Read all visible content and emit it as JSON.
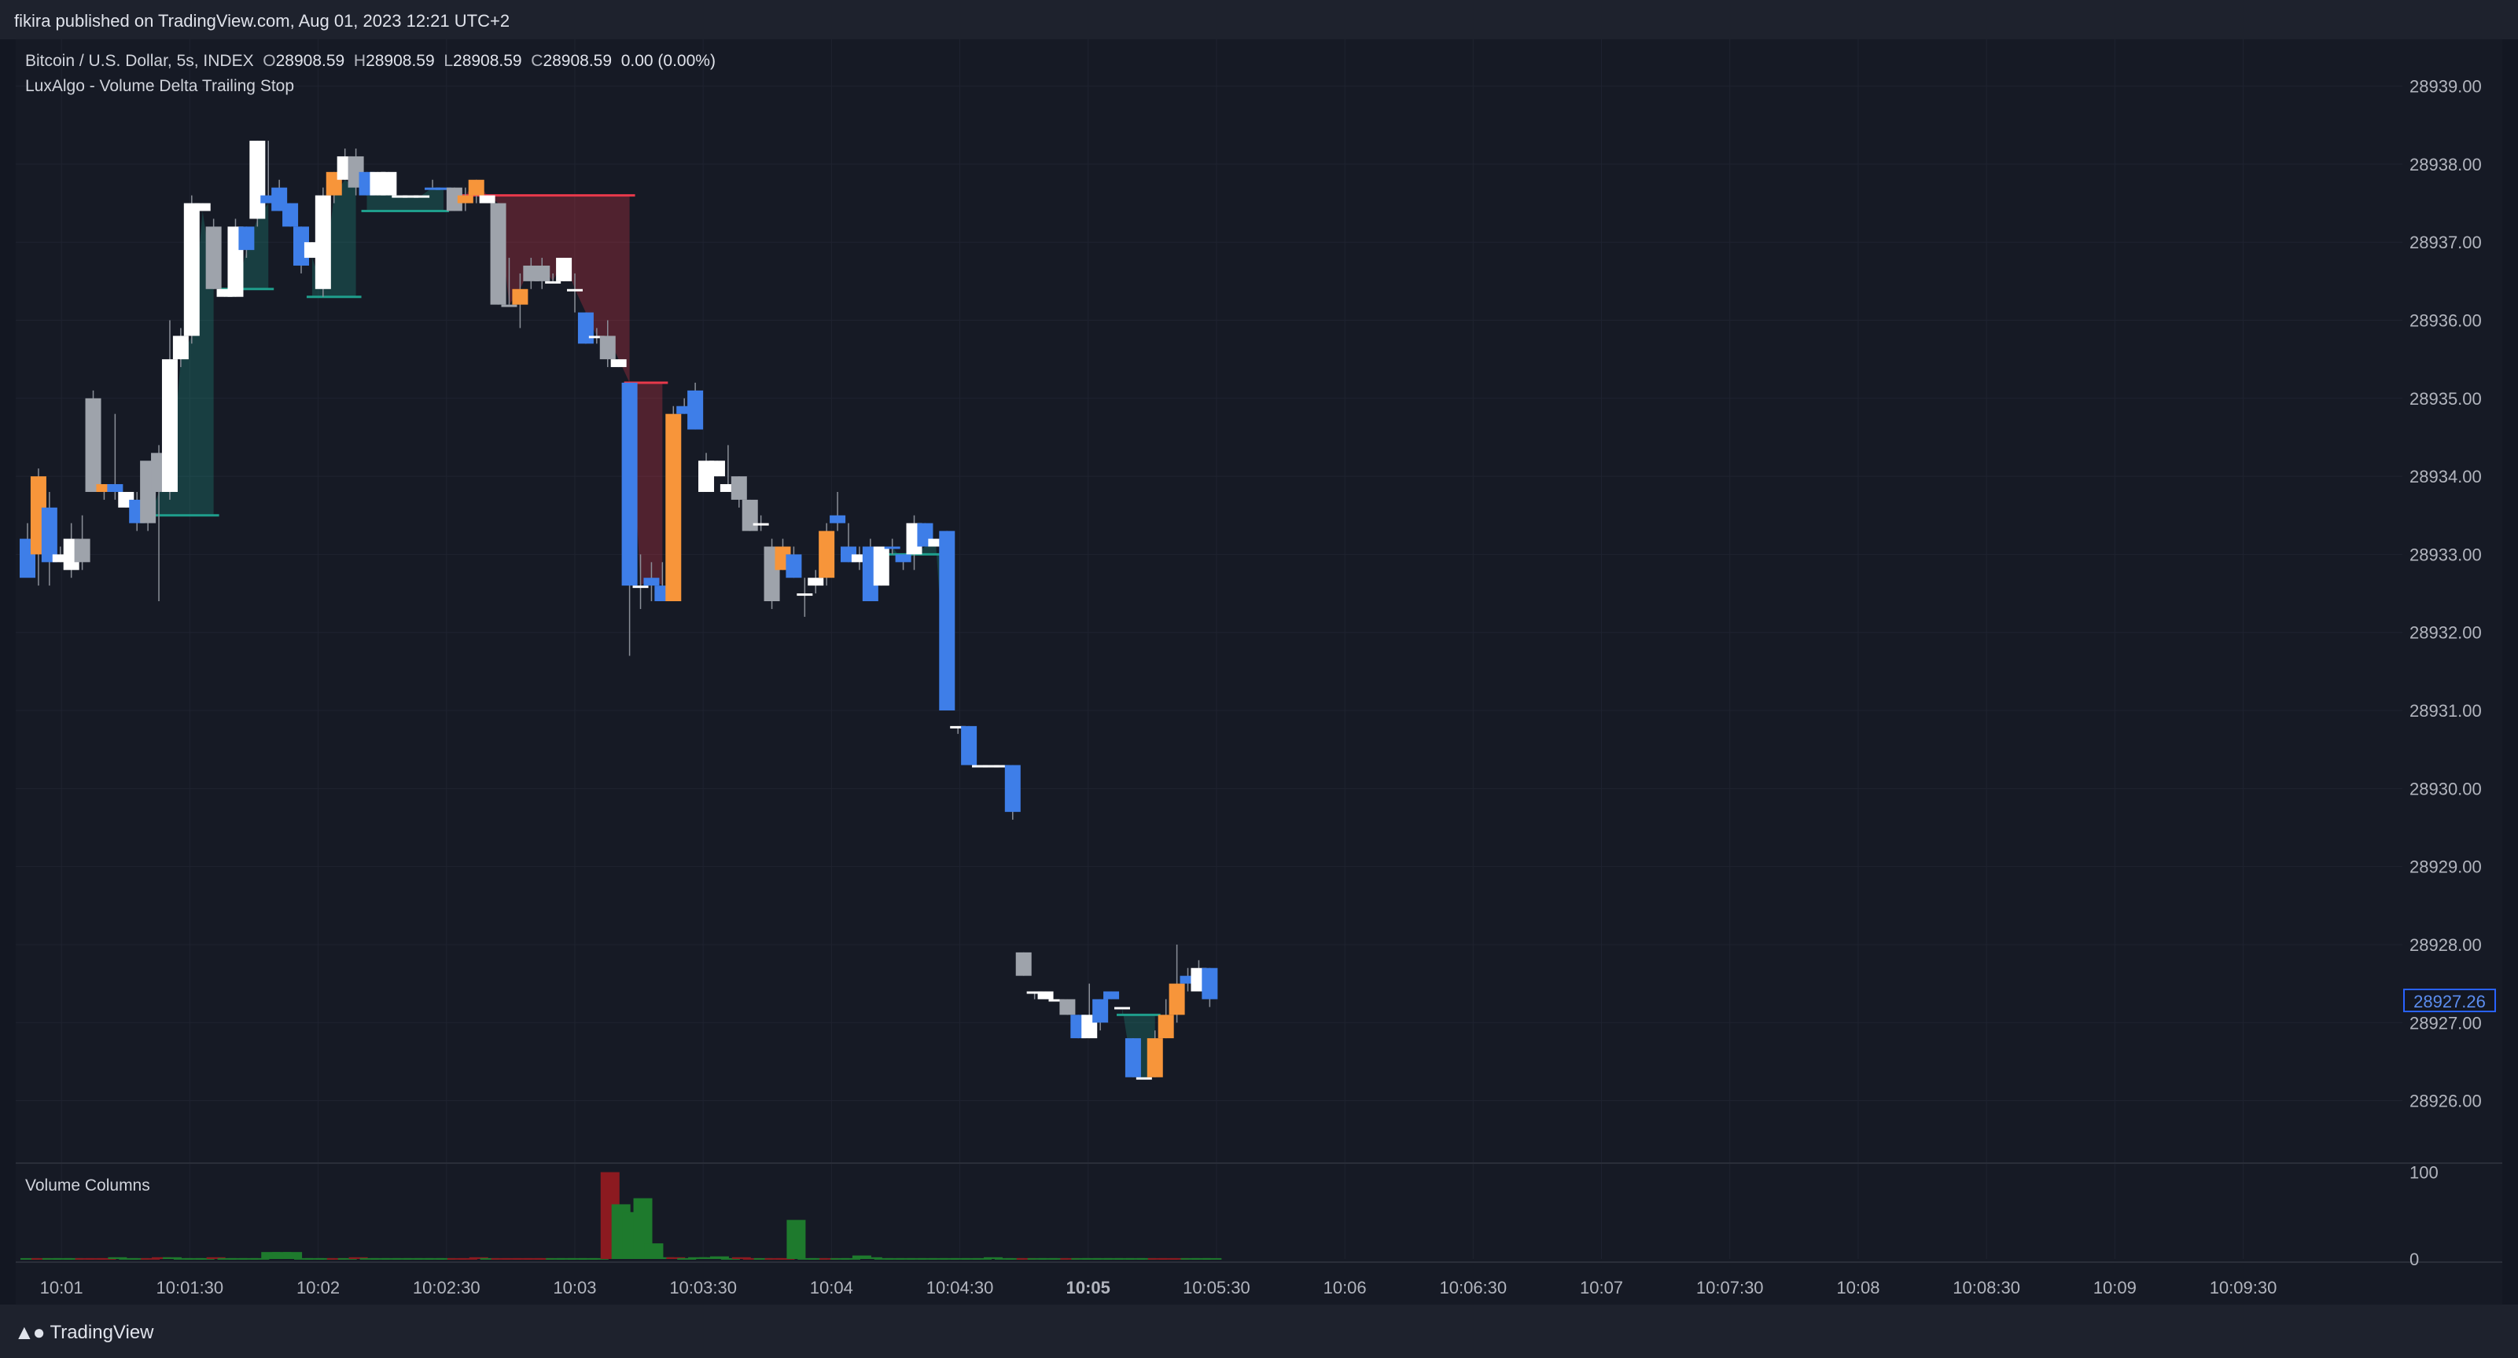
{
  "header": {
    "published": "fikira published on TradingView.com, Aug 01, 2023 12:21 UTC+2"
  },
  "legend": {
    "symbol": "Bitcoin / U.S. Dollar, 5s, INDEX",
    "o_label": "O",
    "o": "28908.59",
    "h_label": "H",
    "h": "28908.59",
    "l_label": "L",
    "l": "28908.59",
    "c_label": "C",
    "c": "28908.59",
    "change": "0.00 (0.00%)",
    "indicator": "LuxAlgo - Volume Delta Trailing Stop"
  },
  "volume_pane": {
    "title": "Volume Columns"
  },
  "last_price_badge": "28927.26",
  "footer": {
    "brand": "TradingView"
  },
  "colors": {
    "background": "#131722",
    "up_blue": "#3e7ee8",
    "down_orange": "#f7953a",
    "white": "#ffffff",
    "gray": "#9ea3ab",
    "stop_bull": "#1f9e8c",
    "stop_bear": "#e8394b",
    "vol_green": "#1e7a2d",
    "vol_red": "#8c1a20"
  },
  "chart_data": [
    {
      "type": "candlestick",
      "y_ticks": [
        "28939.00",
        "28938.00",
        "28937.00",
        "28936.00",
        "28935.00",
        "28934.00",
        "28933.00",
        "28932.00",
        "28931.00",
        "28930.00",
        "28929.00",
        "28928.00",
        "28927.00",
        "28926.00"
      ],
      "x_ticks": [
        "10:01",
        "10:01:30",
        "10:02",
        "10:02:30",
        "10:03",
        "10:03:30",
        "10:04",
        "10:04:30",
        "10:05",
        "10:05:30",
        "10:06",
        "10:06:30",
        "10:07",
        "10:07:30",
        "10:08",
        "10:08:30",
        "10:09",
        "10:09:30"
      ],
      "ylim": [
        28925.2,
        28939.6
      ],
      "candles": [
        {
          "o": 28933.2,
          "h": 28933.4,
          "l": 28932.8,
          "c": 28932.7,
          "k": "b"
        },
        {
          "o": 28933.0,
          "h": 28934.1,
          "l": 28932.6,
          "c": 28934.0,
          "k": "o"
        },
        {
          "o": 28933.6,
          "h": 28933.8,
          "l": 28932.6,
          "c": 28932.9,
          "k": "b"
        },
        {
          "o": 28933.0,
          "h": 28933.1,
          "l": 28932.9,
          "c": 28932.9,
          "k": "w"
        },
        {
          "o": 28933.2,
          "h": 28933.4,
          "l": 28932.7,
          "c": 28932.8,
          "k": "w"
        },
        {
          "o": 28933.2,
          "h": 28933.5,
          "l": 28932.8,
          "c": 28932.9,
          "k": "g"
        },
        {
          "o": 28935.0,
          "h": 28935.1,
          "l": 28933.9,
          "c": 28933.8,
          "k": "g"
        },
        {
          "o": 28933.8,
          "h": 28933.9,
          "l": 28933.7,
          "c": 28933.9,
          "k": "o"
        },
        {
          "o": 28933.9,
          "h": 28934.8,
          "l": 28933.7,
          "c": 28933.8,
          "k": "b"
        },
        {
          "o": 28933.8,
          "h": 28933.8,
          "l": 28933.6,
          "c": 28933.6,
          "k": "w"
        },
        {
          "o": 28933.7,
          "h": 28933.8,
          "l": 28933.3,
          "c": 28933.4,
          "k": "b"
        },
        {
          "o": 28933.4,
          "h": 28934.1,
          "l": 28933.3,
          "c": 28934.2,
          "k": "g"
        },
        {
          "o": 28933.8,
          "h": 28934.4,
          "l": 28932.4,
          "c": 28934.3,
          "k": "g"
        },
        {
          "o": 28933.8,
          "h": 28936.0,
          "l": 28933.7,
          "c": 28935.5,
          "k": "w"
        },
        {
          "o": 28935.5,
          "h": 28935.9,
          "l": 28935.4,
          "c": 28935.8,
          "k": "w"
        },
        {
          "o": 28935.8,
          "h": 28937.6,
          "l": 28935.7,
          "c": 28937.5,
          "k": "w"
        },
        {
          "o": 28937.5,
          "h": 28937.5,
          "l": 28937.4,
          "c": 28937.4,
          "k": "w"
        },
        {
          "o": 28937.2,
          "h": 28937.3,
          "l": 28936.4,
          "c": 28936.4,
          "k": "g"
        },
        {
          "o": 28936.4,
          "h": 28936.4,
          "l": 28936.3,
          "c": 28936.3,
          "k": "w"
        },
        {
          "o": 28936.3,
          "h": 28937.3,
          "l": 28936.3,
          "c": 28937.2,
          "k": "w"
        },
        {
          "o": 28936.9,
          "h": 28937.2,
          "l": 28936.8,
          "c": 28937.2,
          "k": "b"
        },
        {
          "o": 28937.3,
          "h": 28938.3,
          "l": 28937.2,
          "c": 28938.3,
          "k": "w"
        },
        {
          "o": 28937.6,
          "h": 28938.3,
          "l": 28937.5,
          "c": 28937.5,
          "k": "b"
        },
        {
          "o": 28937.4,
          "h": 28937.8,
          "l": 28937.4,
          "c": 28937.7,
          "k": "b"
        },
        {
          "o": 28937.5,
          "h": 28937.5,
          "l": 28937.2,
          "c": 28937.2,
          "k": "b"
        },
        {
          "o": 28937.2,
          "h": 28937.2,
          "l": 28936.6,
          "c": 28936.7,
          "k": "b"
        },
        {
          "o": 28936.8,
          "h": 28937.0,
          "l": 28936.8,
          "c": 28937.0,
          "k": "w"
        },
        {
          "o": 28936.4,
          "h": 28937.7,
          "l": 28936.3,
          "c": 28937.6,
          "k": "w"
        },
        {
          "o": 28937.6,
          "h": 28937.9,
          "l": 28937.5,
          "c": 28937.9,
          "k": "o"
        },
        {
          "o": 28937.8,
          "h": 28938.2,
          "l": 28937.8,
          "c": 28938.1,
          "k": "w"
        },
        {
          "o": 28938.1,
          "h": 28938.2,
          "l": 28937.6,
          "c": 28937.7,
          "k": "g"
        },
        {
          "o": 28937.9,
          "h": 28937.9,
          "l": 28937.6,
          "c": 28937.6,
          "k": "b"
        },
        {
          "o": 28937.9,
          "h": 28937.9,
          "l": 28937.6,
          "c": 28937.6,
          "k": "w"
        },
        {
          "o": 28937.9,
          "h": 28937.9,
          "l": 28937.6,
          "c": 28937.6,
          "k": "w"
        },
        {
          "o": 28937.6,
          "h": 28937.6,
          "l": 28937.6,
          "c": 28937.6,
          "k": "w"
        },
        {
          "o": 28937.6,
          "h": 28937.6,
          "l": 28937.6,
          "c": 28937.6,
          "k": "w"
        },
        {
          "o": 28937.6,
          "h": 28937.6,
          "l": 28937.6,
          "c": 28937.6,
          "k": "w"
        },
        {
          "o": 28937.7,
          "h": 28937.8,
          "l": 28937.7,
          "c": 28937.7,
          "k": "b"
        },
        {
          "o": 28937.7,
          "h": 28937.7,
          "l": 28937.7,
          "c": 28937.7,
          "k": "b"
        },
        {
          "o": 28937.7,
          "h": 28937.7,
          "l": 28937.4,
          "c": 28937.4,
          "k": "g"
        },
        {
          "o": 28937.5,
          "h": 28937.7,
          "l": 28937.4,
          "c": 28937.6,
          "k": "o"
        },
        {
          "o": 28937.6,
          "h": 28937.8,
          "l": 28937.5,
          "c": 28937.8,
          "k": "o"
        },
        {
          "o": 28937.6,
          "h": 28937.6,
          "l": 28937.5,
          "c": 28937.5,
          "k": "w"
        },
        {
          "o": 28937.5,
          "h": 28937.5,
          "l": 28936.2,
          "c": 28936.2,
          "k": "g"
        },
        {
          "o": 28936.2,
          "h": 28936.8,
          "l": 28936.2,
          "c": 28936.2,
          "k": "g"
        },
        {
          "o": 28936.2,
          "h": 28936.6,
          "l": 28935.9,
          "c": 28936.4,
          "k": "o"
        },
        {
          "o": 28936.5,
          "h": 28936.8,
          "l": 28936.4,
          "c": 28936.7,
          "k": "g"
        },
        {
          "o": 28936.7,
          "h": 28936.8,
          "l": 28936.4,
          "c": 28936.5,
          "k": "g"
        },
        {
          "o": 28936.5,
          "h": 28936.6,
          "l": 28936.5,
          "c": 28936.5,
          "k": "w"
        },
        {
          "o": 28936.8,
          "h": 28936.8,
          "l": 28936.5,
          "c": 28936.5,
          "k": "w"
        },
        {
          "o": 28936.4,
          "h": 28936.6,
          "l": 28936.1,
          "c": 28936.4,
          "k": "w"
        },
        {
          "o": 28936.1,
          "h": 28936.1,
          "l": 28935.7,
          "c": 28935.7,
          "k": "b"
        },
        {
          "o": 28935.8,
          "h": 28935.9,
          "l": 28935.7,
          "c": 28935.8,
          "k": "w"
        },
        {
          "o": 28935.8,
          "h": 28936.0,
          "l": 28935.4,
          "c": 28935.5,
          "k": "g"
        },
        {
          "o": 28935.5,
          "h": 28935.5,
          "l": 28935.4,
          "c": 28935.4,
          "k": "w"
        },
        {
          "o": 28935.2,
          "h": 28935.2,
          "l": 28931.7,
          "c": 28932.6,
          "k": "b"
        },
        {
          "o": 28932.6,
          "h": 28933.0,
          "l": 28932.3,
          "c": 28932.6,
          "k": "w"
        },
        {
          "o": 28932.7,
          "h": 28932.9,
          "l": 28932.4,
          "c": 28932.6,
          "k": "b"
        },
        {
          "o": 28932.6,
          "h": 28932.9,
          "l": 28932.4,
          "c": 28932.4,
          "k": "b"
        },
        {
          "o": 28932.4,
          "h": 28934.9,
          "l": 28932.4,
          "c": 28934.8,
          "k": "o"
        },
        {
          "o": 28934.8,
          "h": 28935.0,
          "l": 28934.8,
          "c": 28934.9,
          "k": "b"
        },
        {
          "o": 28935.1,
          "h": 28935.2,
          "l": 28934.6,
          "c": 28934.6,
          "k": "b"
        },
        {
          "o": 28934.2,
          "h": 28934.3,
          "l": 28933.8,
          "c": 28933.8,
          "k": "w"
        },
        {
          "o": 28934.2,
          "h": 28934.2,
          "l": 28934.0,
          "c": 28934.0,
          "k": "w"
        },
        {
          "o": 28933.8,
          "h": 28934.4,
          "l": 28933.8,
          "c": 28933.9,
          "k": "w"
        },
        {
          "o": 28934.0,
          "h": 28934.0,
          "l": 28933.6,
          "c": 28933.7,
          "k": "g"
        },
        {
          "o": 28933.7,
          "h": 28933.7,
          "l": 28933.3,
          "c": 28933.3,
          "k": "g"
        },
        {
          "o": 28933.4,
          "h": 28933.5,
          "l": 28933.3,
          "c": 28933.4,
          "k": "w"
        },
        {
          "o": 28933.1,
          "h": 28933.2,
          "l": 28932.3,
          "c": 28932.4,
          "k": "g"
        },
        {
          "o": 28932.8,
          "h": 28933.2,
          "l": 28932.8,
          "c": 28933.1,
          "k": "o"
        },
        {
          "o": 28933.0,
          "h": 28933.1,
          "l": 28932.7,
          "c": 28932.7,
          "k": "b"
        },
        {
          "o": 28932.5,
          "h": 28932.7,
          "l": 28932.2,
          "c": 28932.5,
          "k": "w"
        },
        {
          "o": 28932.6,
          "h": 28932.8,
          "l": 28932.5,
          "c": 28932.7,
          "k": "w"
        },
        {
          "o": 28932.7,
          "h": 28933.4,
          "l": 28932.6,
          "c": 28933.3,
          "k": "o"
        },
        {
          "o": 28933.5,
          "h": 28933.8,
          "l": 28933.3,
          "c": 28933.4,
          "k": "b"
        },
        {
          "o": 28933.1,
          "h": 28933.4,
          "l": 28932.9,
          "c": 28932.9,
          "k": "b"
        },
        {
          "o": 28933.0,
          "h": 28933.1,
          "l": 28932.8,
          "c": 28932.9,
          "k": "w"
        },
        {
          "o": 28933.1,
          "h": 28933.2,
          "l": 28932.4,
          "c": 28932.4,
          "k": "b"
        },
        {
          "o": 28932.6,
          "h": 28933.1,
          "l": 28932.6,
          "c": 28933.1,
          "k": "w"
        },
        {
          "o": 28933.1,
          "h": 28933.2,
          "l": 28933.0,
          "c": 28933.1,
          "k": "b"
        },
        {
          "o": 28933.0,
          "h": 28933.0,
          "l": 28932.8,
          "c": 28932.9,
          "k": "b"
        },
        {
          "o": 28933.0,
          "h": 28933.5,
          "l": 28932.8,
          "c": 28933.4,
          "k": "w"
        },
        {
          "o": 28933.4,
          "h": 28933.4,
          "l": 28933.1,
          "c": 28933.1,
          "k": "b"
        },
        {
          "o": 28933.2,
          "h": 28933.2,
          "l": 28933.1,
          "c": 28933.1,
          "k": "w"
        },
        {
          "o": 28933.3,
          "h": 28933.3,
          "l": 28931.0,
          "c": 28931.0,
          "k": "b"
        },
        {
          "o": 28930.8,
          "h": 28930.8,
          "l": 28930.7,
          "c": 28930.8,
          "k": "w"
        },
        {
          "o": 28930.8,
          "h": 28930.8,
          "l": 28930.3,
          "c": 28930.3,
          "k": "b"
        },
        {
          "o": 28930.3,
          "h": 28930.3,
          "l": 28930.3,
          "c": 28930.3,
          "k": "w"
        },
        {
          "o": 28930.3,
          "h": 28930.3,
          "l": 28930.3,
          "c": 28930.3,
          "k": "w"
        },
        {
          "o": 28930.3,
          "h": 28930.3,
          "l": 28930.3,
          "c": 28930.3,
          "k": "w"
        },
        {
          "o": 28930.3,
          "h": 28930.3,
          "l": 28929.6,
          "c": 28929.7,
          "k": "b"
        },
        {
          "o": 28927.9,
          "h": 28927.9,
          "l": 28927.6,
          "c": 28927.6,
          "k": "g"
        },
        {
          "o": 28927.4,
          "h": 28927.4,
          "l": 28927.3,
          "c": 28927.4,
          "k": "w"
        },
        {
          "o": 28927.4,
          "h": 28927.4,
          "l": 28927.3,
          "c": 28927.3,
          "k": "w"
        },
        {
          "o": 28927.3,
          "h": 28927.3,
          "l": 28927.3,
          "c": 28927.3,
          "k": "w"
        },
        {
          "o": 28927.3,
          "h": 28927.3,
          "l": 28927.1,
          "c": 28927.1,
          "k": "g"
        },
        {
          "o": 28927.1,
          "h": 28927.1,
          "l": 28926.8,
          "c": 28926.8,
          "k": "b"
        },
        {
          "o": 28926.8,
          "h": 28927.5,
          "l": 28926.8,
          "c": 28927.1,
          "k": "w"
        },
        {
          "o": 28927.0,
          "h": 28927.3,
          "l": 28926.9,
          "c": 28927.3,
          "k": "b"
        },
        {
          "o": 28927.3,
          "h": 28927.4,
          "l": 28927.3,
          "c": 28927.4,
          "k": "b"
        },
        {
          "o": 28927.2,
          "h": 28927.2,
          "l": 28927.2,
          "c": 28927.2,
          "k": "w"
        },
        {
          "o": 28926.8,
          "h": 28926.8,
          "l": 28926.3,
          "c": 28926.3,
          "k": "b"
        },
        {
          "o": 28926.3,
          "h": 28926.3,
          "l": 28926.3,
          "c": 28926.3,
          "k": "w"
        },
        {
          "o": 28926.3,
          "h": 28926.9,
          "l": 28926.3,
          "c": 28926.8,
          "k": "o"
        },
        {
          "o": 28926.8,
          "h": 28927.3,
          "l": 28926.8,
          "c": 28927.1,
          "k": "o"
        },
        {
          "o": 28927.1,
          "h": 28928.0,
          "l": 28927.0,
          "c": 28927.5,
          "k": "o"
        },
        {
          "o": 28927.6,
          "h": 28927.7,
          "l": 28927.4,
          "c": 28927.5,
          "k": "b"
        },
        {
          "o": 28927.4,
          "h": 28927.8,
          "l": 28927.4,
          "c": 28927.7,
          "k": "w"
        },
        {
          "o": 28927.7,
          "h": 28927.7,
          "l": 28927.2,
          "c": 28927.3,
          "k": "b"
        }
      ],
      "trailing_stop": {
        "bull_1": {
          "from": 11,
          "to": 17,
          "level": 28933.5
        },
        "bull_2": {
          "from": 18,
          "to": 22,
          "level": 28936.4
        },
        "bull_3": {
          "from": 26,
          "to": 30,
          "level": 28936.3
        },
        "bull_4": {
          "from": 31,
          "to": 38,
          "level": 28937.4
        },
        "bear_1": {
          "from": 40,
          "to": 55,
          "level": 28937.6
        },
        "bear_2": {
          "from": 55,
          "to": 58,
          "level": 28935.2
        },
        "bull_5": {
          "from": 79,
          "to": 84,
          "level": 28933.0
        },
        "bull_6": {
          "from": 100,
          "to": 103,
          "level": 28927.1
        }
      }
    },
    {
      "type": "bar",
      "series": [
        {
          "name": "",
          "values": [
            1,
            1,
            1,
            1,
            1,
            1,
            1,
            1,
            2,
            1,
            1,
            1,
            2,
            2,
            1,
            1,
            1,
            2,
            1,
            1,
            1,
            1,
            8,
            8,
            8,
            1,
            1,
            1,
            1,
            1,
            2,
            1,
            1,
            1,
            1,
            1,
            1,
            1,
            1,
            1,
            1,
            2,
            1,
            1,
            1,
            1,
            1,
            1,
            1,
            1,
            1,
            1,
            1,
            100,
            63,
            54,
            70,
            18,
            2,
            2,
            1,
            2,
            2,
            3,
            1,
            2,
            1,
            1,
            1,
            1,
            45,
            1,
            1,
            1,
            1,
            1,
            4,
            2,
            1,
            1,
            1,
            1,
            1,
            1,
            1,
            1,
            1,
            1,
            2,
            1,
            1,
            1,
            1,
            1,
            1,
            1,
            1,
            1,
            1,
            1,
            1,
            1,
            1,
            1,
            1,
            1,
            1,
            1,
            1,
            1,
            1,
            1
          ]
        }
      ],
      "y_ticks": [
        "100",
        "0"
      ],
      "ylim": [
        0,
        105
      ]
    }
  ]
}
